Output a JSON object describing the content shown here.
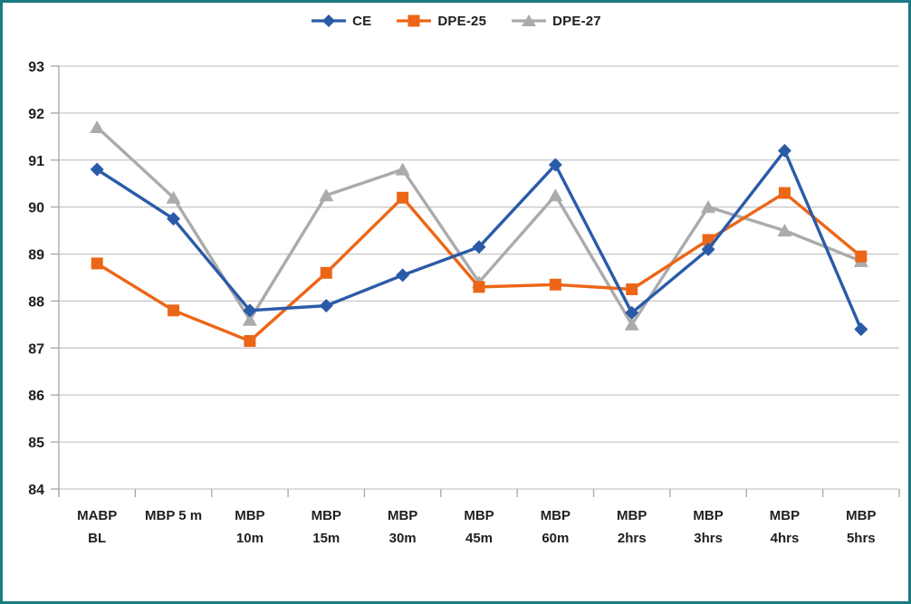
{
  "page": {
    "frame_border_color": "#1b7a83",
    "background_color": "#ffffff"
  },
  "legend": {
    "position": "top-center",
    "items": [
      {
        "label": "CE",
        "marker": "diamond",
        "color": "#2a5ba8"
      },
      {
        "label": "DPE-25",
        "marker": "square",
        "color": "#ec6617"
      },
      {
        "label": "DPE-27",
        "marker": "triangle",
        "color": "#ababab"
      }
    ]
  },
  "chart_data": {
    "type": "line",
    "title": "",
    "xlabel": "",
    "ylabel": "",
    "categories": [
      "MABP BL",
      "MBP 5 m",
      "MBP 10m",
      "MBP 15m",
      "MBP 30m",
      "MBP 45m",
      "MBP 60m",
      "MBP 2hrs",
      "MBP 3hrs",
      "MBP 4hrs",
      "MBP 5hrs"
    ],
    "category_lines": [
      [
        "MABP",
        "BL"
      ],
      [
        "MBP 5 m"
      ],
      [
        "MBP",
        "10m"
      ],
      [
        "MBP",
        "15m"
      ],
      [
        "MBP",
        "30m"
      ],
      [
        "MBP",
        "45m"
      ],
      [
        "MBP",
        "60m"
      ],
      [
        "MBP",
        "2hrs"
      ],
      [
        "MBP",
        "3hrs"
      ],
      [
        "MBP",
        "4hrs"
      ],
      [
        "MBP",
        "5hrs"
      ]
    ],
    "series": [
      {
        "name": "CE",
        "marker": "diamond",
        "color": "#2a5ba8",
        "values": [
          90.8,
          89.75,
          87.8,
          87.9,
          88.55,
          89.15,
          90.9,
          87.75,
          89.1,
          91.2,
          87.4
        ]
      },
      {
        "name": "DPE-25",
        "marker": "square",
        "color": "#ec6617",
        "values": [
          88.8,
          87.8,
          87.15,
          88.6,
          90.2,
          88.3,
          88.35,
          88.25,
          89.3,
          90.3,
          88.95
        ]
      },
      {
        "name": "DPE-27",
        "marker": "triangle",
        "color": "#ababab",
        "values": [
          91.7,
          90.2,
          87.6,
          90.25,
          90.8,
          88.4,
          90.25,
          87.5,
          90.0,
          89.5,
          88.85
        ]
      }
    ],
    "ylim": [
      84,
      93
    ],
    "ytick_step": 1,
    "ytick_labels": [
      "84",
      "85",
      "86",
      "87",
      "88",
      "89",
      "90",
      "91",
      "92",
      "93"
    ],
    "grid": true,
    "gridline_color": "#c9c9c9",
    "axis_color": "#a6a6a6",
    "tick_label_color": "#1f1f1f",
    "legend_position": "top"
  }
}
